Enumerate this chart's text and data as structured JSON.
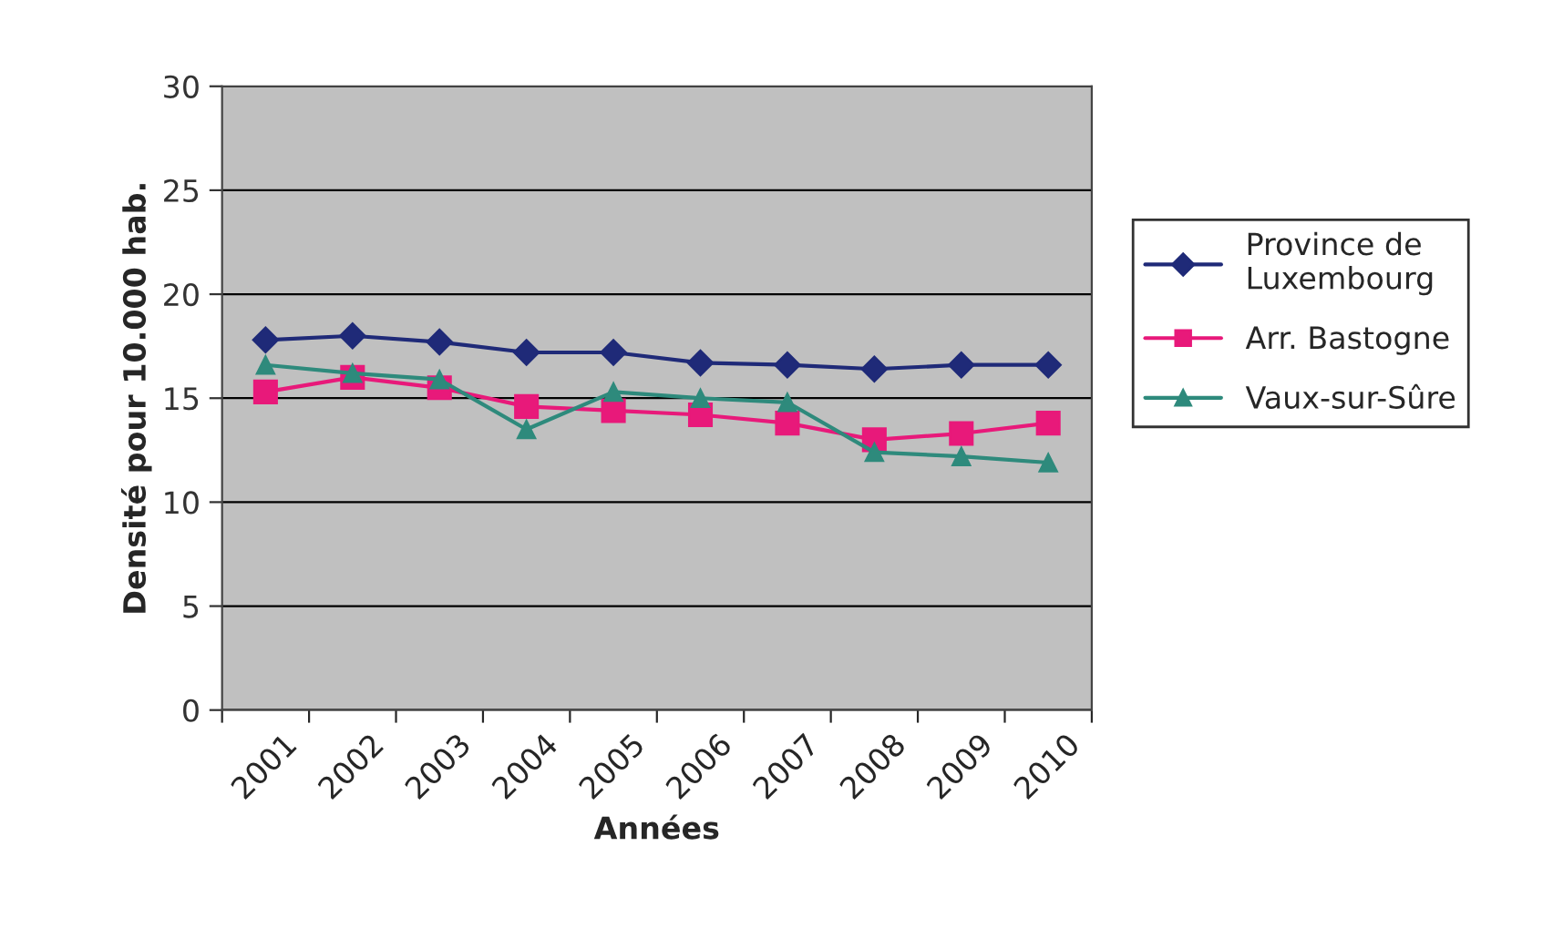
{
  "chart_data": {
    "type": "line",
    "xlabel": "Années",
    "ylabel": "Densité pour 10.000 hab.",
    "categories": [
      "2001",
      "2002",
      "2003",
      "2004",
      "2005",
      "2006",
      "2007",
      "2008",
      "2009",
      "2010"
    ],
    "ylim": [
      0,
      30
    ],
    "yticks": [
      0,
      5,
      10,
      15,
      20,
      25,
      30
    ],
    "grid": "y",
    "legend": "right",
    "series": [
      {
        "name": "Province de\nLuxembourg",
        "color": "#1f2a78",
        "marker": "diamond",
        "values": [
          17.8,
          18.0,
          17.7,
          17.2,
          17.2,
          16.7,
          16.6,
          16.4,
          16.6,
          16.6
        ]
      },
      {
        "name": "Arr. Bastogne",
        "color": "#e8197a",
        "marker": "square",
        "values": [
          15.3,
          16.0,
          15.5,
          14.6,
          14.4,
          14.2,
          13.8,
          13.0,
          13.3,
          13.8
        ]
      },
      {
        "name": "Vaux-sur-Sûre",
        "color": "#2e8a7c",
        "marker": "triangle",
        "values": [
          16.6,
          16.2,
          15.9,
          13.5,
          15.3,
          15.0,
          14.8,
          12.4,
          12.2,
          11.9
        ]
      }
    ]
  }
}
